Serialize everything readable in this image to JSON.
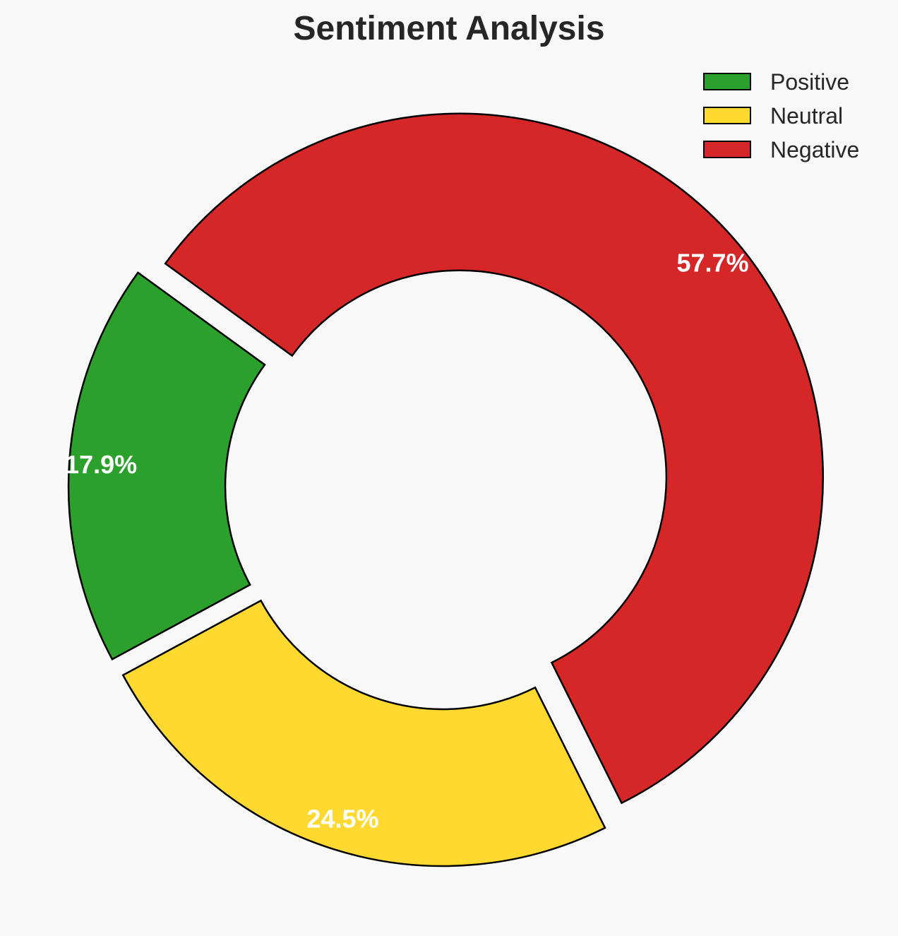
{
  "chart_data": {
    "type": "pie",
    "title": "Sentiment Analysis",
    "donut": true,
    "exploded": true,
    "start_angle_deg": 144,
    "direction": "counterclockwise",
    "legend_placement": "top-right",
    "slices": [
      {
        "label": "Positive",
        "value": 17.9,
        "display": "17.9%",
        "color": "#2ca02c"
      },
      {
        "label": "Neutral",
        "value": 24.5,
        "display": "24.5%",
        "color": "#ffd92f"
      },
      {
        "label": "Negative",
        "value": 57.7,
        "display": "57.7%",
        "color": "#d62728"
      }
    ],
    "edge_color": "#000000",
    "label_color": "#ffffff"
  }
}
